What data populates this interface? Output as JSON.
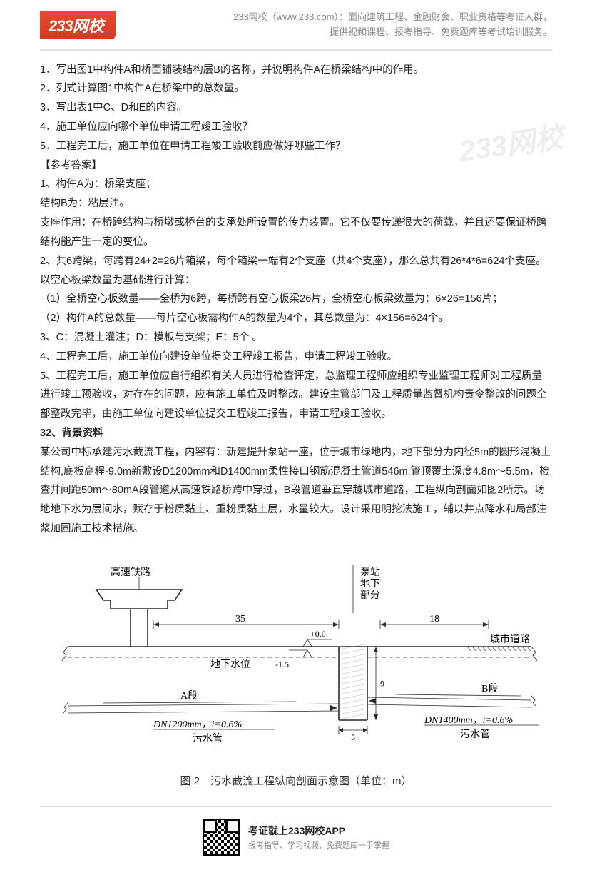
{
  "header": {
    "logo_num": "233",
    "logo_text": "网校",
    "line1": "233网校（www.233.com）：面向建筑工程、金融财会、职业资格等考证人群，",
    "line2": "提供视频课程、报考指导、免费题库等考试培训服务。"
  },
  "watermark": "233网校",
  "body": {
    "q1": "1．写出图1中构件A和桥面铺装结构层B的名称，并说明构件A在桥梁结构中的作用。",
    "q2": "2．列式计算图1中构件A在桥梁中的总数量。",
    "q3": "3．写出表1中C、D和E的内容。",
    "q4": "4．施工单位应向哪个单位申请工程竣工验收？",
    "q5": "5．工程完工后，施工单位在申请工程竣工验收前应做好哪些工作？",
    "ans_hdr": "【参考答案】",
    "a1_1": "1、构件A为：桥梁支座；",
    "a1_2": "结构B为：粘层油。",
    "a1_3": "支座作用：在桥跨结构与桥墩或桥台的支承处所设置的传力装置。它不仅要传递很大的荷载，并且还要保证桥跨结构能产生一定的变位。",
    "a2_1": "2、共6跨梁，每跨有24+2=26片箱梁，每个箱梁一端有2个支座（共4个支座），那么总共有26*4*6=624个支座。",
    "a2_2": "以空心板梁数量为基础进行计算：",
    "a2_3": "（1）全桥空心板数量——全桥为6跨，每桥跨有空心板梁26片，全桥空心板梁数量为：6×26=156片；",
    "a2_4": "（2）构件A的总数量——每片空心板需构件A的数量为4个，其总数量为：4×156=624个。",
    "a3": "3、C：混凝土灌注；D：模板与支架；E：5个 。",
    "a4": "4、工程完工后，施工单位向建设单位提交工程竣工报告，申请工程竣工验收。",
    "a5": "5、工程完工后，施工单位应自行组织有关人员进行检查评定，总监理工程师应组织专业监理工程师对工程质量进行竣工预验收，对存在的问题，应有施工单位及时整改。建设主管部门及工程质量监督机构责令整改的问题全部整改完毕，由施工单位向建设单位提交工程竣工报告，申请工程竣工验收。"
  },
  "case32": {
    "title": "32、背景资料",
    "p1": "某公司中标承建污水截流工程，内容有：新建提升泵站一座，位于城市绿地内，地下部分为内径5m的圆形混凝土结构,底板高程-9.0m新敷设D1200mm和D1400mm柔性接口钢筋混凝土管道546m,管顶覆土深度4.8m～5.5m，检查井间距50m～80mA段管道从高速铁路桥跨中穿过，B段管道垂直穿越城市道路，工程纵向剖面如图2所示。场地地下水为层间水，赋存于粉质黏土、重粉质黏土层，水量较大。设计采用明挖法施工，辅以井点降水和局部注浆加固施工技术措施。"
  },
  "diagram": {
    "caption": "图 2　污水截流工程纵向剖面示意图（单位：m）",
    "labels": {
      "railway": "高速铁路",
      "pump": "泵站\n地下\n部分",
      "road": "城市道路",
      "water_line": "地下水位",
      "segA": "A段",
      "segB": "B段",
      "sewage": "污水管",
      "pipeA": "DN1200mm，i=0.6%",
      "pipeB": "DN1400mm，i=0.6%",
      "elev0": "+0.0",
      "elev15": "-1.5"
    },
    "dims": {
      "span_left": "35",
      "span_right": "18",
      "depth": "9",
      "width": "5"
    },
    "style": {
      "stroke": "#2a2a2a",
      "stroke_width": 1.6,
      "stroke_thin": 0.8,
      "font_size": 14,
      "font_size_sm": 12,
      "bg": "#fdfdfd",
      "hatch": "#444444"
    }
  },
  "footer": {
    "line1": "考证就上233网校APP",
    "line2": "报考指导、学习视频、免费题库一手掌握"
  }
}
